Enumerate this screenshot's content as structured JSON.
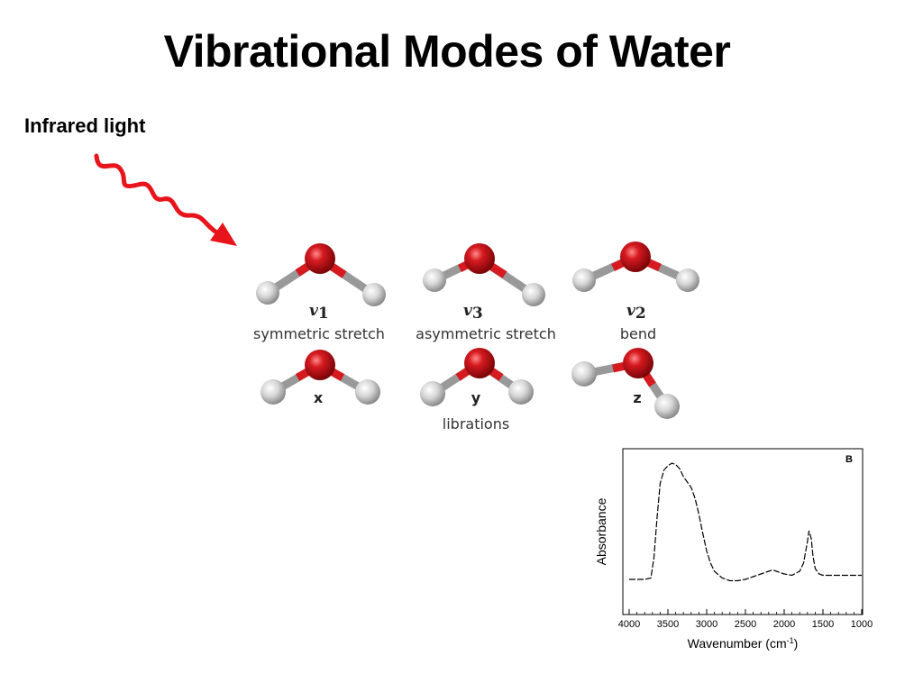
{
  "title": "Vibrational Modes of Water",
  "ir_label": "Infrared light",
  "modes": {
    "v1": {
      "symbol": "v",
      "sub": "1",
      "name": "symmetric stretch"
    },
    "v3": {
      "symbol": "v",
      "sub": "3",
      "name": "asymmetric stretch"
    },
    "v2": {
      "symbol": "v",
      "sub": "2",
      "name": "bend"
    },
    "x": {
      "label": "x"
    },
    "y": {
      "label": "y"
    },
    "z": {
      "label": "z"
    },
    "librations": "librations"
  },
  "colors": {
    "arrow": "#e8141c",
    "oxygen": "#c8141a",
    "hydrogen": "#c8c8c8"
  },
  "chart_data": {
    "type": "line",
    "panel_label": "B",
    "xlabel": "Wavenumber (cm",
    "xlabel_sup": "-1",
    "xlabel_close": ")",
    "ylabel": "Absorbance",
    "xlim": [
      4000,
      1000
    ],
    "x_reversed": true,
    "ylim": [
      0,
      1
    ],
    "x_ticks": [
      "4000",
      "3500",
      "3000",
      "2500",
      "2000",
      "1500",
      "1000"
    ],
    "x_tick_values": [
      4000,
      3500,
      3000,
      2500,
      2000,
      1500,
      1000
    ],
    "series": [
      {
        "x": [
          4000,
          3800,
          3720,
          3680,
          3640,
          3600,
          3550,
          3500,
          3450,
          3400,
          3350,
          3300,
          3250,
          3200,
          3150,
          3100,
          3050,
          3000,
          2950,
          2900,
          2800,
          2700,
          2600,
          2500,
          2400,
          2300,
          2200,
          2150,
          2100,
          2000,
          1900,
          1800,
          1750,
          1700,
          1680,
          1650,
          1630,
          1600,
          1550,
          1500,
          1400,
          1200,
          1000
        ],
        "y": [
          0.14,
          0.14,
          0.15,
          0.3,
          0.6,
          0.85,
          0.95,
          0.98,
          1.0,
          0.99,
          0.96,
          0.9,
          0.86,
          0.82,
          0.74,
          0.62,
          0.48,
          0.35,
          0.26,
          0.2,
          0.15,
          0.13,
          0.13,
          0.14,
          0.16,
          0.18,
          0.2,
          0.21,
          0.2,
          0.18,
          0.17,
          0.2,
          0.26,
          0.42,
          0.5,
          0.44,
          0.32,
          0.22,
          0.18,
          0.17,
          0.17,
          0.17,
          0.17
        ]
      }
    ]
  }
}
